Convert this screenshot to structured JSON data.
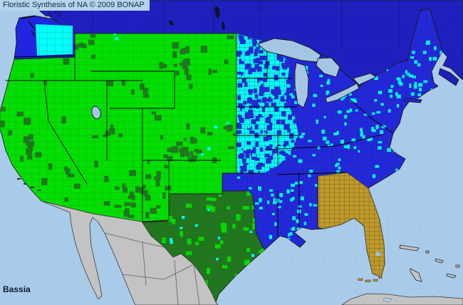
{
  "header": {
    "title": "Floristic Synthesis of NA © 2009 BONAP"
  },
  "map": {
    "taxon_label": "Bassia"
  },
  "colors": {
    "ocean": "#A9CBEA",
    "canada_blue": "#1E1FC0",
    "us_blue": "#1F25E0",
    "county_cyan": "#00FFFF",
    "state_green": "#00DF00",
    "county_dark_green": "#1E781E",
    "state_gold": "#C09A28",
    "mexico_gray": "#C3C3C3",
    "lake_blue": "#A4C6E4",
    "header_bg": "#B5D4EE",
    "header_text": "#122B44",
    "label_text": "#101826",
    "border_black": "#1A1A1A",
    "county_line": "#55502A",
    "graticule": "#6F93B5"
  }
}
